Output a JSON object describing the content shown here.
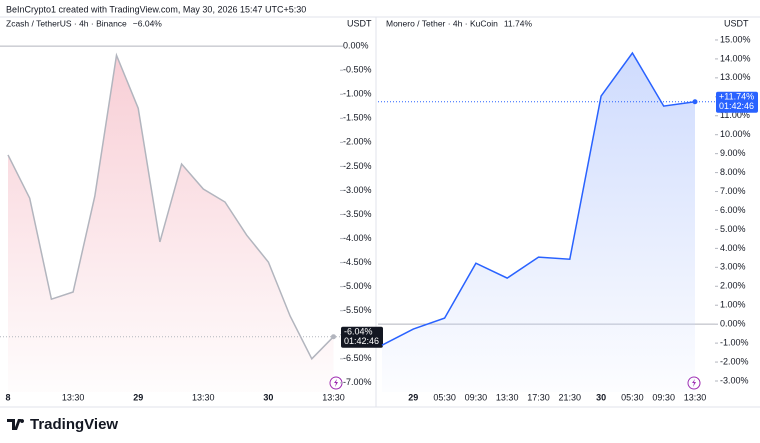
{
  "header": "BeInCrypto1 created with TradingView.com, May 30, 2026 15:47 UTC+5:30",
  "footer": {
    "brand": "TradingView"
  },
  "chart_data": [
    {
      "type": "line",
      "title": "Zcash / TetherUS · 4h · Binance",
      "change": "−6.04%",
      "axis_label": "USDT",
      "categories": [
        "8",
        null,
        null,
        "13:30",
        null,
        null,
        "29",
        null,
        null,
        "13:30",
        null,
        null,
        "30",
        null,
        null,
        "13:30"
      ],
      "values": [
        -2.26,
        -3.16,
        -5.26,
        -5.11,
        -3.12,
        -0.19,
        -1.29,
        -4.07,
        -2.45,
        -2.97,
        -3.24,
        -3.93,
        -4.49,
        -5.61,
        -6.5,
        -6.04
      ],
      "color": "#b2b5be",
      "fill_color": "#f7c9d1",
      "last_value_label": "-6.04%",
      "countdown": "01:42:46",
      "label_color": "#131722",
      "ylim": [
        -7.19,
        0.17
      ],
      "yticks": [
        {
          "value": 0,
          "label": "0.00%"
        },
        {
          "value": -0.5,
          "label": "-0.50%"
        },
        {
          "value": -1,
          "label": "-1.00%"
        },
        {
          "value": -1.5,
          "label": "-1.50%"
        },
        {
          "value": -2,
          "label": "-2.00%"
        },
        {
          "value": -2.5,
          "label": "-2.50%"
        },
        {
          "value": -3,
          "label": "-3.00%"
        },
        {
          "value": -3.5,
          "label": "-3.50%"
        },
        {
          "value": -4,
          "label": "-4.00%"
        },
        {
          "value": -4.5,
          "label": "-4.50%"
        },
        {
          "value": -5,
          "label": "-5.00%"
        },
        {
          "value": -5.5,
          "label": "-5.50%"
        },
        {
          "value": -6,
          "label": "-6.00%"
        },
        {
          "value": -6.5,
          "label": "-6.50%"
        },
        {
          "value": -7,
          "label": "-7.00%"
        }
      ]
    },
    {
      "type": "line",
      "title": "Monero / Tether · 4h · KuCoin",
      "change": "11.74%",
      "axis_label": "USDT",
      "categories": [
        null,
        "29",
        "05:30",
        "09:30",
        "13:30",
        "17:30",
        "21:30",
        "30",
        "05:30",
        "09:30",
        "13:30"
      ],
      "values": [
        -1.11,
        -0.26,
        0.32,
        3.22,
        2.43,
        3.54,
        3.43,
        12.04,
        14.31,
        11.51,
        11.74
      ],
      "color": "#2962ff",
      "fill_color": "#c9d7fd",
      "last_value_label": "+11.74%",
      "countdown": "01:42:46",
      "label_color": "#2962ff",
      "ylim": [
        -3.58,
        15.42
      ],
      "yticks": [
        {
          "value": 15,
          "label": "15.00%"
        },
        {
          "value": 14,
          "label": "14.00%"
        },
        {
          "value": 13,
          "label": "13.00%"
        },
        {
          "value": 12,
          "label": "12.00%"
        },
        {
          "value": 11,
          "label": "11.00%"
        },
        {
          "value": 10,
          "label": "10.00%"
        },
        {
          "value": 9,
          "label": "9.00%"
        },
        {
          "value": 8,
          "label": "8.00%"
        },
        {
          "value": 7,
          "label": "7.00%"
        },
        {
          "value": 6,
          "label": "6.00%"
        },
        {
          "value": 5,
          "label": "5.00%"
        },
        {
          "value": 4,
          "label": "4.00%"
        },
        {
          "value": 3,
          "label": "3.00%"
        },
        {
          "value": 2,
          "label": "2.00%"
        },
        {
          "value": 1,
          "label": "1.00%"
        },
        {
          "value": 0,
          "label": "0.00%"
        },
        {
          "value": -1,
          "label": "-1.00%"
        },
        {
          "value": -2,
          "label": "-2.00%"
        },
        {
          "value": -3,
          "label": "-3.00%"
        }
      ]
    }
  ]
}
